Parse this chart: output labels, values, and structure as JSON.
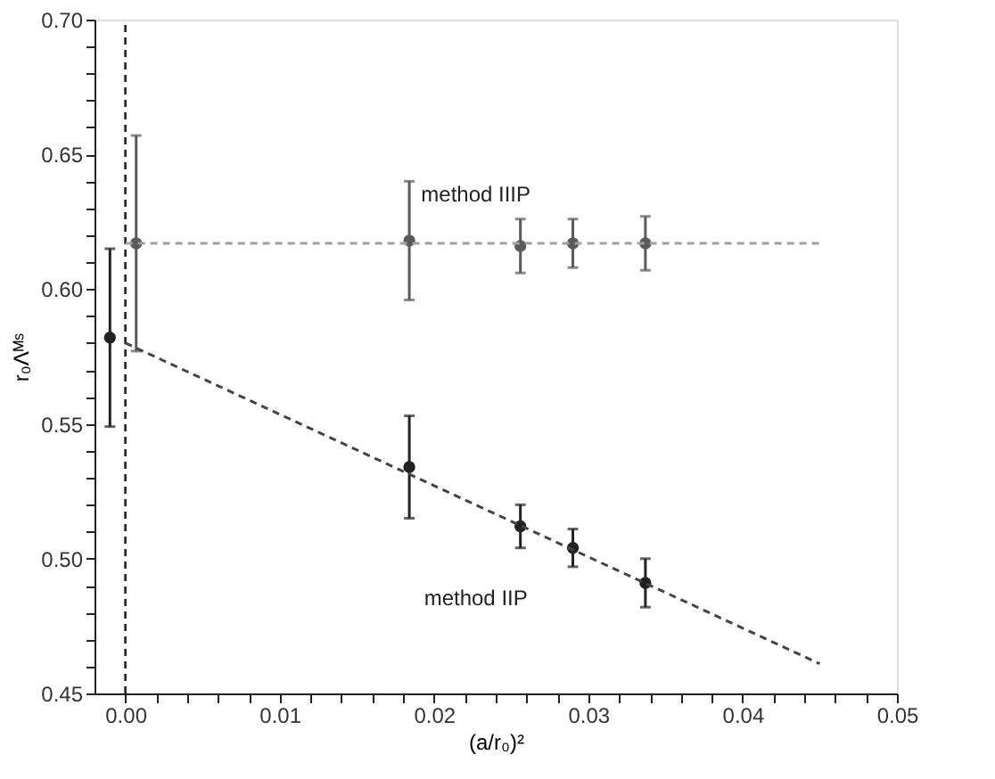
{
  "chart_data": {
    "type": "scatter",
    "xlabel": "(a/r₀)²",
    "ylabel": "r₀Λᴹˢ",
    "xlim": [
      -0.002,
      0.05
    ],
    "ylim": [
      0.45,
      0.7
    ],
    "xticks": [
      {
        "value": 0.0,
        "label": "0.00"
      },
      {
        "value": 0.002,
        "label": null
      },
      {
        "value": 0.004,
        "label": null
      },
      {
        "value": 0.006,
        "label": null
      },
      {
        "value": 0.008,
        "label": null
      },
      {
        "value": 0.01,
        "label": "0.01"
      },
      {
        "value": 0.012,
        "label": null
      },
      {
        "value": 0.014,
        "label": null
      },
      {
        "value": 0.016,
        "label": null
      },
      {
        "value": 0.018,
        "label": null
      },
      {
        "value": 0.02,
        "label": "0.02"
      },
      {
        "value": 0.022,
        "label": null
      },
      {
        "value": 0.024,
        "label": null
      },
      {
        "value": 0.026,
        "label": null
      },
      {
        "value": 0.028,
        "label": null
      },
      {
        "value": 0.03,
        "label": "0.03"
      },
      {
        "value": 0.032,
        "label": null
      },
      {
        "value": 0.034,
        "label": null
      },
      {
        "value": 0.036,
        "label": null
      },
      {
        "value": 0.038,
        "label": null
      },
      {
        "value": 0.04,
        "label": "0.04"
      },
      {
        "value": 0.042,
        "label": null
      },
      {
        "value": 0.044,
        "label": null
      },
      {
        "value": 0.046,
        "label": null
      },
      {
        "value": 0.048,
        "label": null
      },
      {
        "value": 0.05,
        "label": "0.05"
      }
    ],
    "yticks": [
      {
        "value": 0.45,
        "label": "0.45"
      },
      {
        "value": 0.46,
        "label": null
      },
      {
        "value": 0.47,
        "label": null
      },
      {
        "value": 0.48,
        "label": null
      },
      {
        "value": 0.49,
        "label": null
      },
      {
        "value": 0.5,
        "label": "0.50"
      },
      {
        "value": 0.51,
        "label": null
      },
      {
        "value": 0.52,
        "label": null
      },
      {
        "value": 0.53,
        "label": null
      },
      {
        "value": 0.54,
        "label": null
      },
      {
        "value": 0.55,
        "label": "0.55"
      },
      {
        "value": 0.56,
        "label": null
      },
      {
        "value": 0.57,
        "label": null
      },
      {
        "value": 0.58,
        "label": null
      },
      {
        "value": 0.59,
        "label": null
      },
      {
        "value": 0.6,
        "label": "0.60"
      },
      {
        "value": 0.61,
        "label": null
      },
      {
        "value": 0.62,
        "label": null
      },
      {
        "value": 0.63,
        "label": null
      },
      {
        "value": 0.64,
        "label": null
      },
      {
        "value": 0.65,
        "label": "0.65"
      },
      {
        "value": 0.66,
        "label": null
      },
      {
        "value": 0.67,
        "label": null
      },
      {
        "value": 0.68,
        "label": null
      },
      {
        "value": 0.69,
        "label": null
      },
      {
        "value": 0.7,
        "label": "0.70"
      }
    ],
    "grid": false,
    "marker": "circle",
    "series": [
      {
        "type": "scatter",
        "name": "method IIIP",
        "color": "#5a5a5a",
        "x": [
          0.0007,
          0.0184,
          0.0256,
          0.029,
          0.0337
        ],
        "values": [
          0.617,
          0.618,
          0.616,
          0.617,
          0.617
        ],
        "errors": [
          0.04,
          0.022,
          0.01,
          0.009,
          0.01
        ]
      },
      {
        "type": "scatter",
        "name": "method IIP",
        "color": "#222222",
        "x": [
          -0.001,
          0.0184,
          0.0256,
          0.029,
          0.0337
        ],
        "values": [
          0.582,
          0.534,
          0.512,
          0.504,
          0.491
        ],
        "errors": [
          0.033,
          0.019,
          0.008,
          0.007,
          0.009
        ]
      },
      {
        "type": "line",
        "color": "#a0a0a0",
        "line_style": "dashed",
        "marker": "none",
        "x": [
          0.0,
          0.045
        ],
        "values": [
          0.617,
          0.617
        ]
      },
      {
        "type": "line",
        "color": "#444444",
        "line_style": "dashed",
        "marker": "none",
        "x": [
          0.0,
          0.045
        ],
        "values": [
          0.58,
          0.461
        ]
      }
    ],
    "ref_lines": [
      {
        "axis": "x",
        "value": 0.0,
        "color": "#222222",
        "line_style": "dashed"
      }
    ]
  }
}
